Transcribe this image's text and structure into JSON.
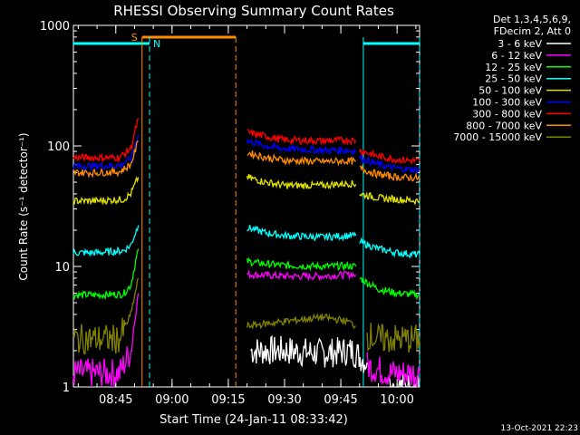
{
  "chart_data": {
    "type": "line",
    "title": "RHESSI Observing Summary Count Rates",
    "xlabel": "Start Time (24-Jan-11 08:33:42)",
    "ylabel": "Count Rate (s⁻¹ detector⁻¹)",
    "y_scale": "log",
    "ylim": [
      1,
      1000
    ],
    "y_ticks": [
      1,
      10,
      100,
      1000
    ],
    "y_tick_labels": [
      "1",
      "10",
      "100",
      "1000"
    ],
    "xlim": [
      "08:33:42",
      "10:06:00"
    ],
    "x_ticks": [
      "08:45",
      "09:00",
      "09:15",
      "09:30",
      "09:45",
      "10:00"
    ],
    "x_tick_labels": [
      "08:45",
      "09:00",
      "09:15",
      "09:30",
      "09:45",
      "10:00"
    ],
    "legend_header": [
      "Det 1,3,4,5,6,9,",
      "FDecim 2, Att 0"
    ],
    "legend_placement": "right",
    "annotations": {
      "saa_label": "S",
      "night_label": "N",
      "saa_interval": [
        "08:52",
        "09:17"
      ],
      "night_interval": [
        "08:33:42",
        "08:54"
      ],
      "night_interval_2": [
        "09:51",
        "10:06"
      ],
      "vertical_markers": [
        "08:52",
        "08:54",
        "09:17",
        "09:51",
        "10:06"
      ]
    },
    "timestamp": "13-Oct-2021 22:23",
    "series": [
      {
        "name": "3 - 6 keV",
        "color": "#ffffff",
        "segments": [
          {
            "x": [
              "09:21",
              "09:30",
              "09:40",
              "09:48",
              "09:52"
            ],
            "y": [
              2.0,
              2.0,
              1.9,
              2.0,
              1.6
            ]
          },
          {
            "x": [
              "09:58",
              "10:06"
            ],
            "y": [
              1.0,
              1.0
            ]
          }
        ]
      },
      {
        "name": "6 - 12 keV",
        "color": "#ff00ff",
        "segments": [
          {
            "x": [
              "08:33:42",
              "08:40",
              "08:46",
              "08:49",
              "08:51"
            ],
            "y": [
              1.3,
              1.3,
              1.3,
              2.0,
              6.0
            ]
          },
          {
            "x": [
              "09:20",
              "09:30",
              "09:40",
              "09:48",
              "09:49"
            ],
            "y": [
              8.6,
              8.3,
              8.3,
              8.6,
              8.5
            ]
          },
          {
            "x": [
              "09:52",
              "09:58",
              "10:00",
              "10:06"
            ],
            "y": [
              1.5,
              1.3,
              1.3,
              1.3
            ]
          }
        ]
      },
      {
        "name": "12 - 25 keV",
        "color": "#00ff00",
        "segments": [
          {
            "x": [
              "08:33:42",
              "08:40",
              "08:47",
              "08:49",
              "08:51"
            ],
            "y": [
              5.8,
              5.8,
              5.9,
              7.0,
              14
            ]
          },
          {
            "x": [
              "09:20",
              "09:25",
              "09:30",
              "09:40",
              "09:47",
              "09:49"
            ],
            "y": [
              11,
              10.5,
              10.2,
              10.0,
              10.1,
              10
            ]
          },
          {
            "x": [
              "09:50",
              "09:55",
              "10:00",
              "10:06"
            ],
            "y": [
              8.0,
              6.5,
              6.0,
              5.8
            ]
          }
        ]
      },
      {
        "name": "25 - 50 keV",
        "color": "#00ffff",
        "segments": [
          {
            "x": [
              "08:33:42",
              "08:40",
              "08:47",
              "08:49",
              "08:51"
            ],
            "y": [
              13,
              13,
              13.5,
              15,
              22
            ]
          },
          {
            "x": [
              "09:20",
              "09:25",
              "09:30",
              "09:40",
              "09:47",
              "09:49"
            ],
            "y": [
              21,
              19,
              18,
              17.5,
              18,
              18
            ]
          },
          {
            "x": [
              "09:50",
              "09:55",
              "10:00",
              "10:06"
            ],
            "y": [
              16,
              14,
              13,
              12.5
            ]
          }
        ]
      },
      {
        "name": "50 - 100 keV",
        "color": "#e0e000",
        "segments": [
          {
            "x": [
              "08:33:42",
              "08:40",
              "08:47",
              "08:49",
              "08:51"
            ],
            "y": [
              35,
              35,
              36,
              40,
              55
            ]
          },
          {
            "x": [
              "09:20",
              "09:25",
              "09:30",
              "09:40",
              "09:47",
              "09:49"
            ],
            "y": [
              55,
              50,
              47,
              47,
              49,
              48
            ]
          },
          {
            "x": [
              "09:50",
              "09:55",
              "10:00",
              "10:06"
            ],
            "y": [
              40,
              37,
              36,
              35
            ]
          }
        ]
      },
      {
        "name": "100 - 300 keV",
        "color": "#0000ff",
        "segments": [
          {
            "x": [
              "08:33:42",
              "08:40",
              "08:46",
              "08:49",
              "08:51"
            ],
            "y": [
              68,
              68,
              69,
              78,
              125
            ]
          },
          {
            "x": [
              "09:20",
              "09:25",
              "09:30",
              "09:40",
              "09:47",
              "09:49"
            ],
            "y": [
              110,
              100,
              95,
              92,
              92,
              91
            ]
          },
          {
            "x": [
              "09:50",
              "09:55",
              "10:00",
              "10:06"
            ],
            "y": [
              80,
              70,
              65,
              63
            ]
          }
        ]
      },
      {
        "name": "300 - 800 keV",
        "color": "#ff0000",
        "segments": [
          {
            "x": [
              "08:33:42",
              "08:40",
              "08:46",
              "08:49",
              "08:51"
            ],
            "y": [
              80,
              80,
              80,
              95,
              170
            ]
          },
          {
            "x": [
              "09:20",
              "09:25",
              "09:30",
              "09:40",
              "09:47",
              "09:49"
            ],
            "y": [
              130,
              120,
              112,
              110,
              112,
              110
            ]
          },
          {
            "x": [
              "09:50",
              "09:55",
              "10:00",
              "10:06"
            ],
            "y": [
              92,
              82,
              77,
              75
            ]
          }
        ]
      },
      {
        "name": "800 - 7000 keV",
        "color": "#ff8c00",
        "segments": [
          {
            "x": [
              "08:33:42",
              "08:40",
              "08:46",
              "08:49",
              "08:51"
            ],
            "y": [
              60,
              60,
              61,
              70,
              110
            ]
          },
          {
            "x": [
              "09:20",
              "09:25",
              "09:30",
              "09:40",
              "09:47",
              "09:49"
            ],
            "y": [
              88,
              80,
              76,
              74,
              75,
              74
            ]
          },
          {
            "x": [
              "09:50",
              "09:55",
              "10:00",
              "10:06"
            ],
            "y": [
              65,
              58,
              55,
              54
            ]
          }
        ]
      },
      {
        "name": "7000 - 15000 keV",
        "color": "#808000",
        "segments": [
          {
            "x": [
              "08:33:42",
              "08:40",
              "08:46",
              "08:49",
              "08:51"
            ],
            "y": [
              2.5,
              2.5,
              2.5,
              4.0,
              8.0
            ]
          },
          {
            "x": [
              "09:20",
              "09:30",
              "09:40",
              "09:47",
              "09:49"
            ],
            "y": [
              3.2,
              3.5,
              3.8,
              3.5,
              3.2
            ]
          },
          {
            "x": [
              "09:52",
              "09:55",
              "10:00",
              "10:06"
            ],
            "y": [
              2.7,
              2.5,
              2.5,
              2.5
            ]
          }
        ]
      }
    ]
  }
}
